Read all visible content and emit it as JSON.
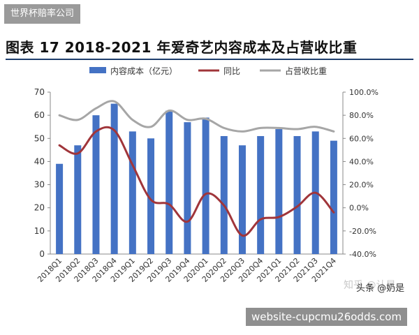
{
  "brand_tag": "世界杯赔率公司",
  "title": "图表 17 2018-2021 年爱奇艺内容成本及占营收比重",
  "watermark": "知乎 @认是",
  "source_label": "头条 @奶是",
  "website": "website-cupcmu26odds.com",
  "colors": {
    "bar": "#4472c4",
    "yoy_line": "#a0353a",
    "share_line": "#a6a6a6",
    "axis": "#888888",
    "text": "#333333"
  },
  "chart_data": {
    "type": "bar",
    "title": "",
    "xlabel": "",
    "ylabel": "",
    "categories": [
      "2018Q1",
      "2018Q2",
      "2018Q3",
      "2018Q4",
      "2019Q1",
      "2019Q2",
      "2019Q3",
      "2019Q4",
      "2020Q1",
      "2020Q2",
      "2020Q3",
      "2020Q4",
      "2021Q1",
      "2021Q2",
      "2021Q3",
      "2021Q4"
    ],
    "ylim": [
      0,
      70
    ],
    "yticks": [
      "0",
      "10",
      "20",
      "30",
      "40",
      "50",
      "60",
      "70"
    ],
    "y2lim": [
      -40,
      100
    ],
    "y2ticks": [
      "-40.0%",
      "-20.0%",
      "0.0%",
      "20.0%",
      "40.0%",
      "60.0%",
      "80.0%",
      "100.0%"
    ],
    "legend_position": "top",
    "series": [
      {
        "name": "内容成本（亿元）",
        "type": "bar",
        "axis": "left",
        "values": [
          39,
          47,
          60,
          65,
          53,
          50,
          62,
          57,
          59,
          51,
          47,
          51,
          54,
          51,
          53,
          49
        ]
      },
      {
        "name": "同比",
        "type": "line",
        "axis": "right",
        "values": [
          54,
          47,
          66,
          67,
          37,
          7,
          3,
          -12,
          12,
          2,
          -24,
          -10,
          -8,
          1,
          13,
          -4
        ]
      },
      {
        "name": "占营收比重",
        "type": "line",
        "axis": "right",
        "values": [
          80,
          76,
          86,
          92,
          76,
          70,
          84,
          76,
          77,
          69,
          66,
          69,
          69,
          68,
          70,
          66
        ]
      }
    ]
  }
}
